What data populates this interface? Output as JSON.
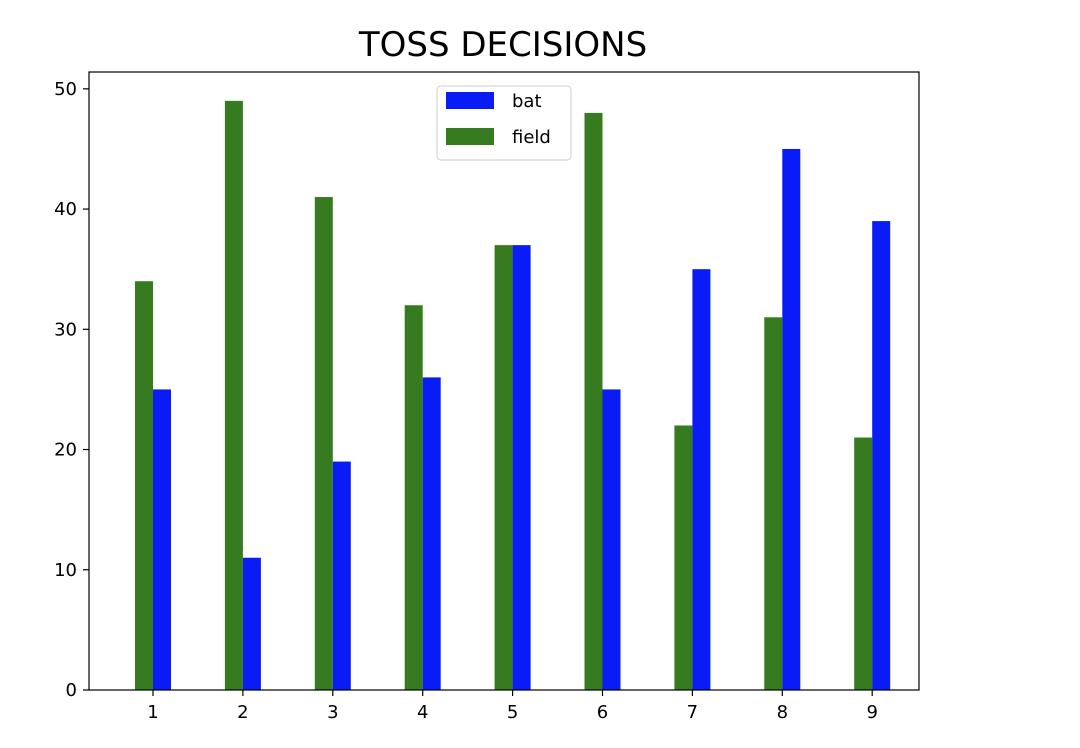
{
  "chart_data": {
    "type": "bar",
    "title": "TOSS DECISIONS",
    "xlabel": "",
    "ylabel": "",
    "categories": [
      "1",
      "2",
      "3",
      "4",
      "5",
      "6",
      "7",
      "8",
      "9"
    ],
    "series": [
      {
        "name": "bat",
        "color": "#0a1cf5",
        "values": [
          25,
          11,
          19,
          26,
          37,
          25,
          35,
          45,
          39
        ]
      },
      {
        "name": "field",
        "color": "#367b20",
        "values": [
          34,
          49,
          41,
          32,
          37,
          48,
          22,
          31,
          21
        ]
      }
    ],
    "ylim": [
      0,
      51.4
    ],
    "yticks": [
      0,
      10,
      20,
      30,
      40,
      50
    ],
    "grid": false,
    "legend": "upper-center"
  }
}
